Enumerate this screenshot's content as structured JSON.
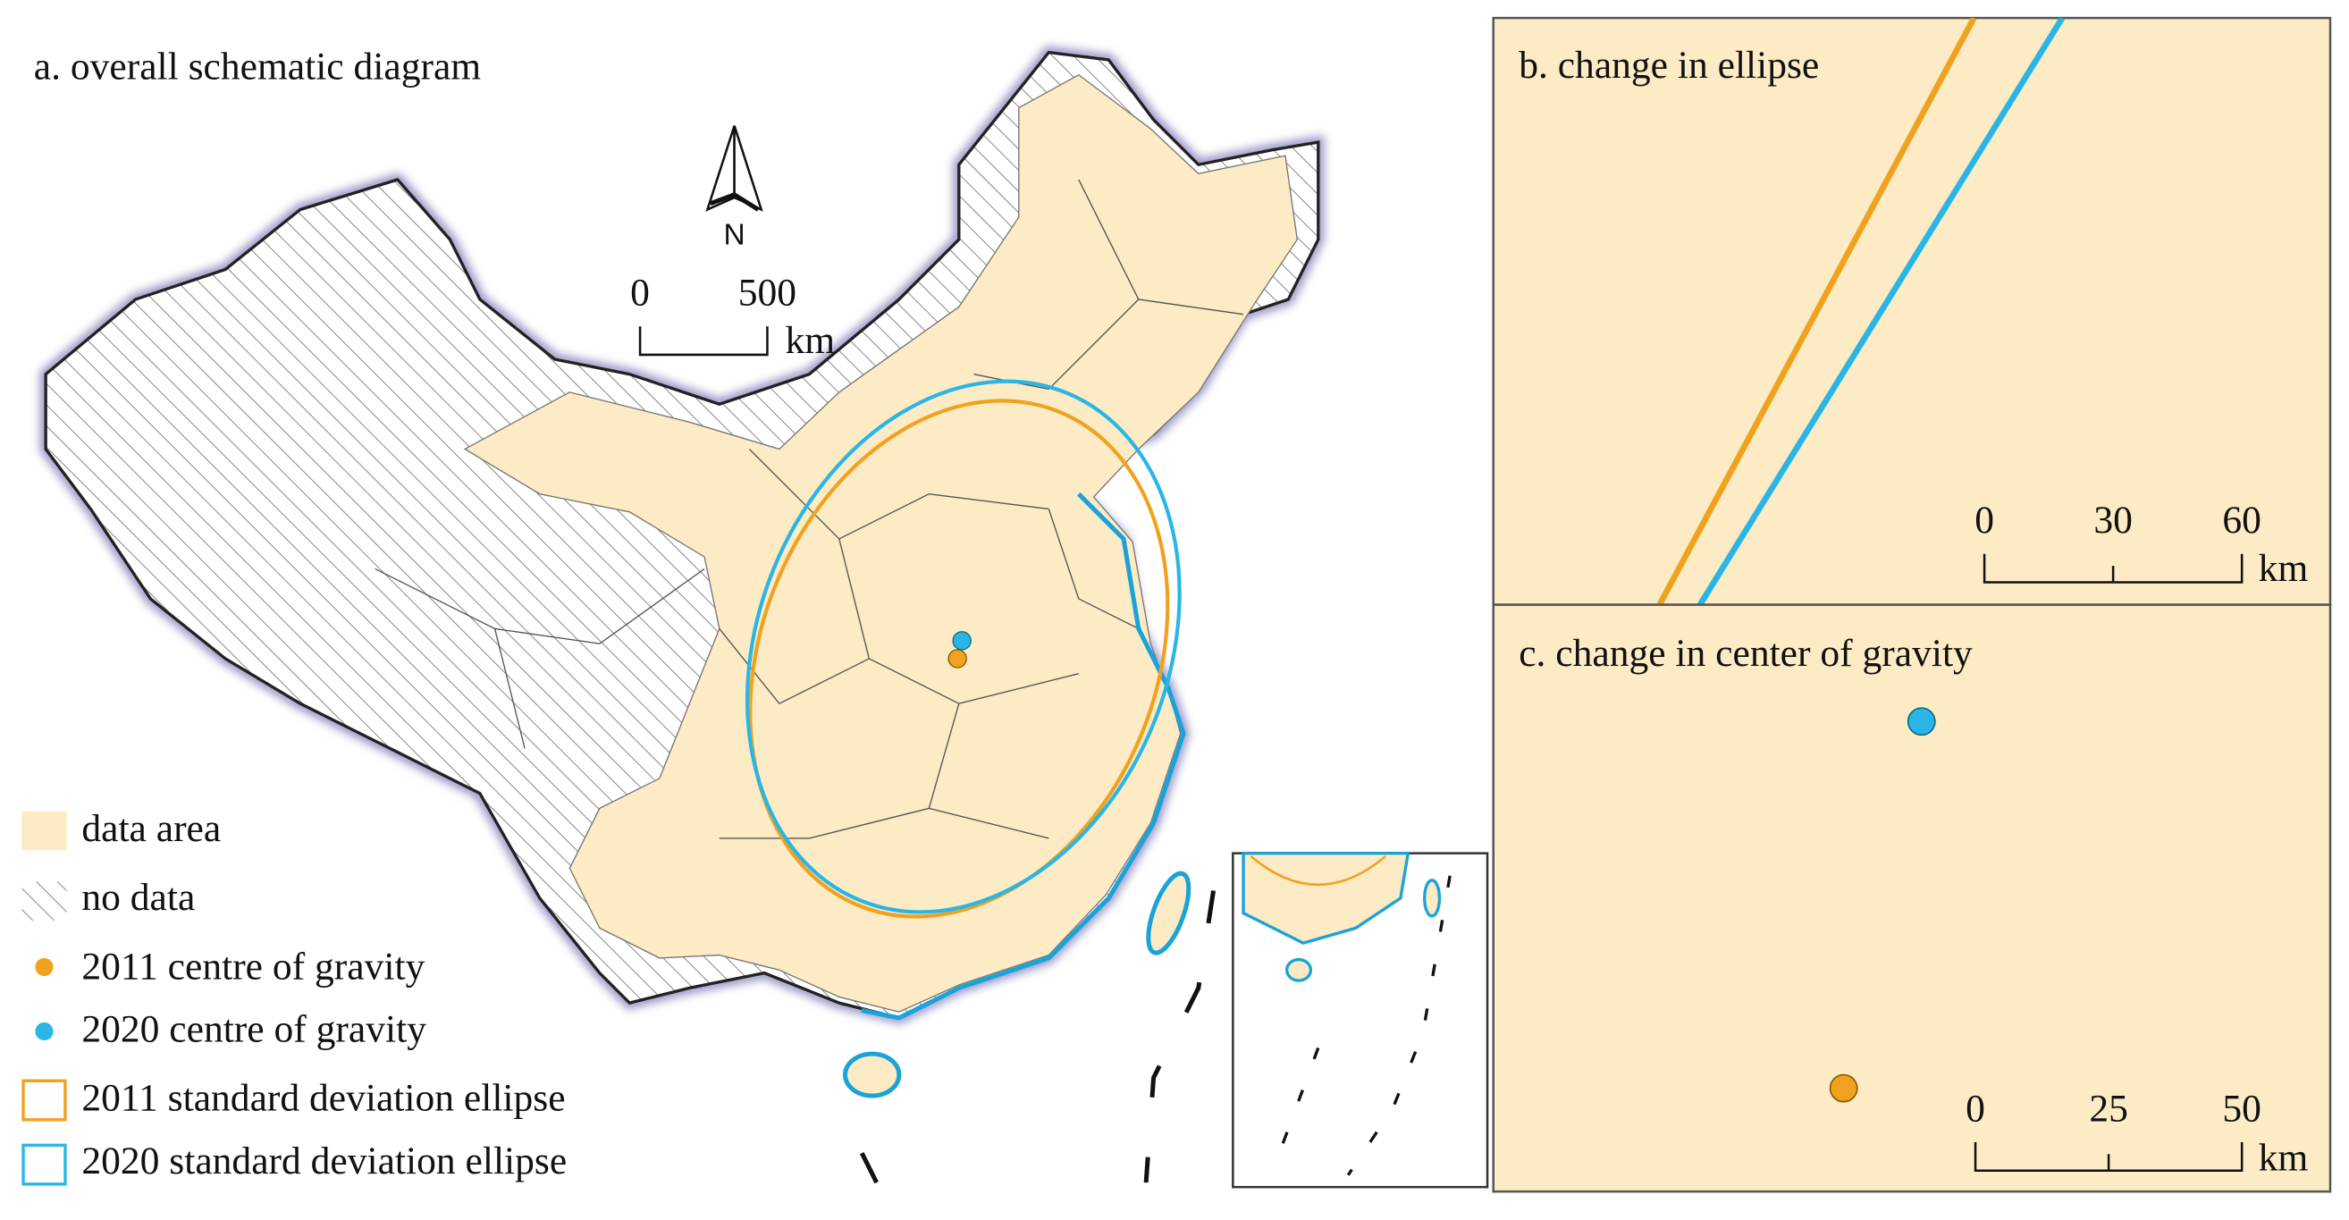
{
  "panel_a": {
    "title": "a. overall schematic diagram",
    "north_label": "N",
    "scale_bar": {
      "ticks": [
        0,
        500
      ],
      "unit": "km"
    }
  },
  "legend": {
    "items": [
      "data area",
      "no data",
      "2011 centre of gravity",
      "2020 centre of gravity",
      "2011 standard deviation ellipse",
      "2020 standard deviation ellipse"
    ]
  },
  "panel_b": {
    "title": "b. change in ellipse",
    "scale_bar": {
      "ticks": [
        0,
        30,
        60
      ],
      "unit": "km"
    }
  },
  "panel_c": {
    "title": "c. change in center of gravity",
    "scale_bar": {
      "ticks": [
        0,
        25,
        50
      ],
      "unit": "km"
    }
  }
}
